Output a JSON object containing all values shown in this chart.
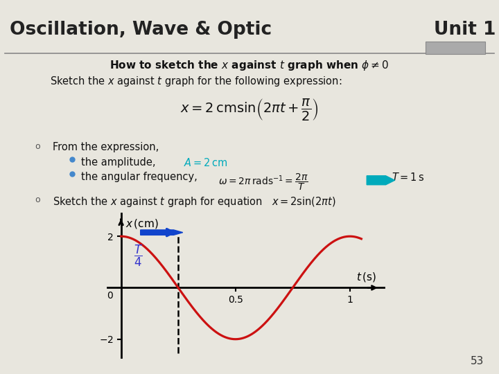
{
  "title_left": "Oscillation, Wave & Optic",
  "title_right": "Unit 1",
  "bg_color": "#e8e6de",
  "header_line_color": "#888888",
  "page_num": "53",
  "wave_color": "#cc1111",
  "dashed_line_x": 0.25,
  "arrow_color": "#1144cc",
  "t_label_color": "#3333cc",
  "teal_color": "#00aabb",
  "amplitude_color": "#00aabb",
  "bullet_color": "#555555",
  "dot_color": "#4488cc"
}
